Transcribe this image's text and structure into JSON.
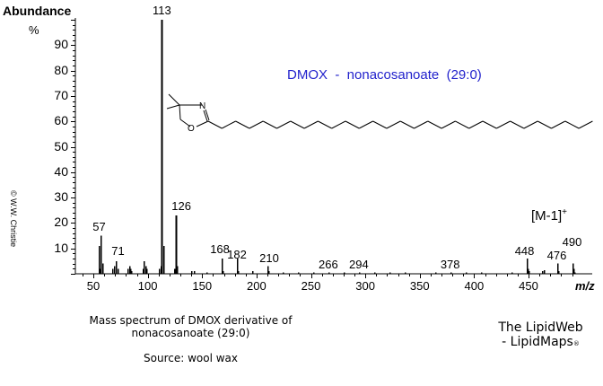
{
  "chart_data": {
    "type": "bar",
    "subtype": "mass-spectrum-stick",
    "title": "DMOX - nonacosanoate (29:0)",
    "xlabel": "m/z",
    "ylabel": "Abundance %",
    "xlim": [
      40,
      500
    ],
    "ylim": [
      0,
      100
    ],
    "x_ticks": [
      50,
      100,
      150,
      200,
      250,
      300,
      350,
      400,
      450
    ],
    "y_ticks": [
      10,
      20,
      30,
      40,
      50,
      60,
      70,
      80,
      90
    ],
    "grid": false,
    "legend": null,
    "annotation_ion": "[M-1]+",
    "labeled_peaks": [
      {
        "mz": 57,
        "label": "57",
        "abundance": 15
      },
      {
        "mz": 71,
        "label": "71",
        "abundance": 5
      },
      {
        "mz": 113,
        "label": "113",
        "abundance": 100
      },
      {
        "mz": 126,
        "label": "126",
        "abundance": 23
      },
      {
        "mz": 168,
        "label": "168",
        "abundance": 6
      },
      {
        "mz": 182,
        "label": "182",
        "abundance": 6
      },
      {
        "mz": 210,
        "label": "210",
        "abundance": 3
      },
      {
        "mz": 266,
        "label": "266",
        "abundance": 0.5
      },
      {
        "mz": 294,
        "label": "294",
        "abundance": 0.5
      },
      {
        "mz": 378,
        "label": "378",
        "abundance": 0.5
      },
      {
        "mz": 448,
        "label": "448",
        "abundance": 6
      },
      {
        "mz": 476,
        "label": "476",
        "abundance": 4
      },
      {
        "mz": 490,
        "label": "490",
        "abundance": 4
      }
    ],
    "peaks": [
      {
        "mz": 55,
        "abundance": 11
      },
      {
        "mz": 56,
        "abundance": 2
      },
      {
        "mz": 57,
        "abundance": 15
      },
      {
        "mz": 58,
        "abundance": 4
      },
      {
        "mz": 67,
        "abundance": 2
      },
      {
        "mz": 69,
        "abundance": 3
      },
      {
        "mz": 71,
        "abundance": 5
      },
      {
        "mz": 72,
        "abundance": 2
      },
      {
        "mz": 81,
        "abundance": 2
      },
      {
        "mz": 83,
        "abundance": 3
      },
      {
        "mz": 84,
        "abundance": 2
      },
      {
        "mz": 85,
        "abundance": 1
      },
      {
        "mz": 95,
        "abundance": 2
      },
      {
        "mz": 96,
        "abundance": 5
      },
      {
        "mz": 98,
        "abundance": 3
      },
      {
        "mz": 99,
        "abundance": 2
      },
      {
        "mz": 110,
        "abundance": 2
      },
      {
        "mz": 112,
        "abundance": 3
      },
      {
        "mz": 113,
        "abundance": 100
      },
      {
        "mz": 114,
        "abundance": 11
      },
      {
        "mz": 124,
        "abundance": 2
      },
      {
        "mz": 126,
        "abundance": 23
      },
      {
        "mz": 127,
        "abundance": 3
      },
      {
        "mz": 140,
        "abundance": 1
      },
      {
        "mz": 142,
        "abundance": 1
      },
      {
        "mz": 154,
        "abundance": 0.5
      },
      {
        "mz": 168,
        "abundance": 6
      },
      {
        "mz": 169,
        "abundance": 1
      },
      {
        "mz": 182,
        "abundance": 6
      },
      {
        "mz": 183,
        "abundance": 1
      },
      {
        "mz": 196,
        "abundance": 1
      },
      {
        "mz": 210,
        "abundance": 3
      },
      {
        "mz": 211,
        "abundance": 1
      },
      {
        "mz": 224,
        "abundance": 0.5
      },
      {
        "mz": 238,
        "abundance": 0.5
      },
      {
        "mz": 252,
        "abundance": 0.5
      },
      {
        "mz": 266,
        "abundance": 0.5
      },
      {
        "mz": 280,
        "abundance": 0.5
      },
      {
        "mz": 294,
        "abundance": 0.5
      },
      {
        "mz": 308,
        "abundance": 0.5
      },
      {
        "mz": 322,
        "abundance": 0.5
      },
      {
        "mz": 336,
        "abundance": 0.5
      },
      {
        "mz": 364,
        "abundance": 0.5
      },
      {
        "mz": 378,
        "abundance": 0.5
      },
      {
        "mz": 392,
        "abundance": 0.5
      },
      {
        "mz": 406,
        "abundance": 0.5
      },
      {
        "mz": 434,
        "abundance": 0.5
      },
      {
        "mz": 448,
        "abundance": 6
      },
      {
        "mz": 449,
        "abundance": 2
      },
      {
        "mz": 450,
        "abundance": 1
      },
      {
        "mz": 462,
        "abundance": 1
      },
      {
        "mz": 464,
        "abundance": 1.5
      },
      {
        "mz": 476,
        "abundance": 4
      },
      {
        "mz": 477,
        "abundance": 1
      },
      {
        "mz": 490,
        "abundance": 4
      },
      {
        "mz": 491,
        "abundance": 2
      },
      {
        "mz": 492,
        "abundance": 0.5
      }
    ]
  },
  "axes": {
    "ylabel": "Abundance",
    "yunit": "%",
    "xlabel": "m/z"
  },
  "title": "DMOX  -  nonacosanoate  (29:0)",
  "ion_annotation": {
    "text": "[M-1]",
    "sup": "+"
  },
  "copyright": "© W.W. Christie",
  "structure": {
    "ring_atoms": [
      "N",
      "O"
    ],
    "chain_units": 28,
    "name": "4,4-dimethyloxazoline nonacosanoate"
  },
  "caption": {
    "line1": "Mass spectrum of DMOX derivative of",
    "line2": "nonacosanoate (29:0)",
    "source": "Source: wool wax"
  },
  "credit": {
    "line1": "The LipidWeb",
    "line2": "- LipidMaps",
    "mark": "®"
  }
}
